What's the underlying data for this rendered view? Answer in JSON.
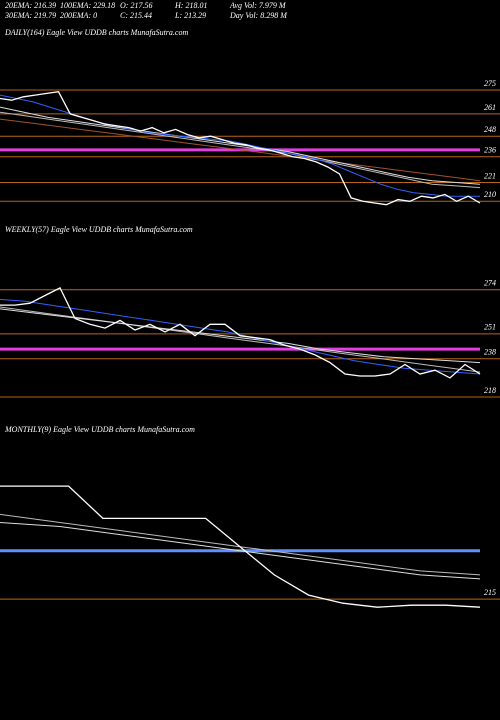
{
  "header": {
    "row1": [
      "20EMA: 216.39",
      "100EMA: 229.18",
      "O: 217.56",
      "H: 218.01",
      "Avg Vol: 7.979 M"
    ],
    "row2": [
      "30EMA: 219.79",
      "200EMA: 0",
      "C: 215.44",
      "L: 213.29",
      "Day Vol: 8.298 M"
    ]
  },
  "chart_data": [
    {
      "type": "line",
      "title": "DAILY(164) Eagle  View  UDDB charts MunafaSutra.com",
      "ylim": [
        202,
        310
      ],
      "yticks": [
        275,
        261,
        248,
        236,
        221,
        210
      ],
      "tick_color": "#b8651b",
      "reference_lines": [
        {
          "value": 240,
          "color": "#e040e0"
        }
      ],
      "series": [
        {
          "color": "#a0522d",
          "values": [
            258,
            256,
            254,
            252,
            250,
            248,
            246,
            244,
            242,
            240,
            238,
            236,
            234,
            232,
            230,
            228,
            226,
            224,
            222
          ]
        },
        {
          "color": "#bbbbbb",
          "values": [
            262,
            260,
            258,
            256,
            254,
            252,
            250,
            248,
            246,
            244,
            242,
            240,
            238,
            235,
            232,
            229,
            226,
            223,
            220,
            219,
            218
          ]
        },
        {
          "color": "#dddddd",
          "values": [
            265,
            262,
            259,
            257,
            255,
            253,
            251,
            249,
            247,
            245,
            243,
            241,
            239,
            236,
            233,
            230,
            227,
            224,
            222,
            221,
            220
          ]
        },
        {
          "color": "#3060ff",
          "values": [
            272,
            270,
            268,
            265,
            262,
            259,
            256,
            254,
            252,
            250,
            249,
            248,
            247,
            246,
            245,
            243,
            241,
            239,
            237,
            235,
            232,
            228,
            224,
            220,
            217,
            215,
            214,
            213,
            213,
            213
          ]
        },
        {
          "color": "#ffffff",
          "values": [
            270,
            269,
            271,
            272,
            273,
            274,
            261,
            259,
            257,
            255,
            254,
            253,
            251,
            253,
            250,
            252,
            249,
            247,
            248,
            246,
            244,
            243,
            241,
            240,
            238,
            236,
            235,
            233,
            230,
            226,
            212,
            210,
            209,
            208,
            211,
            210,
            213,
            212,
            214,
            210,
            213,
            209
          ]
        }
      ]
    },
    {
      "type": "line",
      "title": "WEEKLY(57) Eagle  View  UDDB charts MunafaSutra.com",
      "ylim": [
        206,
        300
      ],
      "yticks": [
        274,
        251,
        238,
        218
      ],
      "tick_color": "#b8651b",
      "reference_lines": [
        {
          "value": 243,
          "color": "#e040e0"
        }
      ],
      "series": [
        {
          "color": "#bbbbbb",
          "values": [
            265,
            263,
            261,
            259,
            257,
            255,
            253,
            251,
            249,
            247,
            245,
            243,
            241,
            239,
            237,
            235,
            233,
            231
          ]
        },
        {
          "color": "#dddddd",
          "values": [
            264,
            262,
            260,
            258,
            256,
            254,
            252,
            250,
            248,
            246,
            243,
            241,
            239,
            238,
            237,
            236
          ]
        },
        {
          "color": "#3060ff",
          "values": [
            269,
            268,
            266,
            264,
            262,
            260,
            258,
            256,
            254,
            252,
            249,
            246,
            243,
            240,
            237,
            235,
            233,
            232,
            231,
            230
          ]
        },
        {
          "color": "#ffffff",
          "values": [
            266,
            266,
            267,
            271,
            275,
            259,
            256,
            254,
            258,
            253,
            256,
            252,
            256,
            250,
            256,
            256,
            250,
            249,
            248,
            245,
            243,
            240,
            236,
            230,
            229,
            229,
            230,
            235,
            230,
            232,
            228,
            235,
            230
          ]
        }
      ]
    },
    {
      "type": "line",
      "title": "MONTHLY(9) Eagle  View  UDDB charts MunafaSutra.com",
      "ylim": [
        190,
        247
      ],
      "yticks": [
        215
      ],
      "tick_color": "#b8651b",
      "reference_lines": [
        {
          "value": 227,
          "color": "#6090ff"
        }
      ],
      "series": [
        {
          "color": "#bbbbbb",
          "values": [
            236,
            234,
            232,
            230,
            228,
            226,
            224,
            222,
            221
          ]
        },
        {
          "color": "#dddddd",
          "values": [
            234,
            233,
            231,
            229,
            227,
            225,
            223,
            221,
            220
          ]
        },
        {
          "color": "#ffffff",
          "values": [
            243,
            243,
            243,
            235,
            235,
            235,
            235,
            228,
            221,
            216,
            214,
            213,
            213.5,
            213.5,
            213
          ]
        }
      ]
    }
  ]
}
